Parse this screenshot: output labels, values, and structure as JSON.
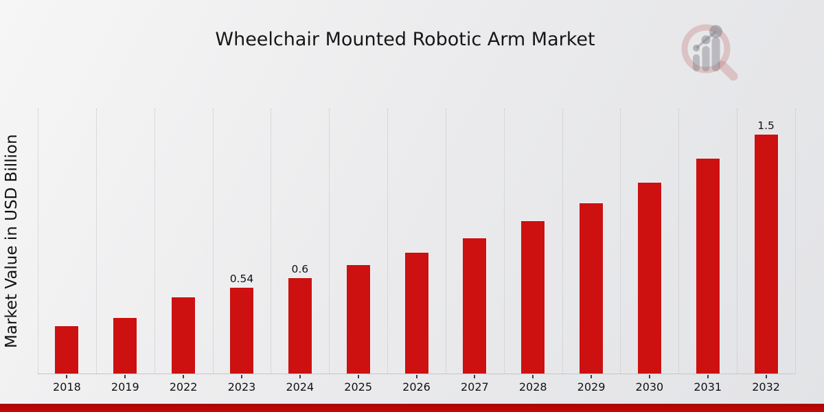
{
  "header": {
    "title": "Wheelchair Mounted Robotic Arm Market"
  },
  "chart_data": {
    "type": "bar",
    "title": "Wheelchair Mounted Robotic Arm Market",
    "xlabel": "",
    "ylabel": "Market Value in USD Billion",
    "categories": [
      "2018",
      "2019",
      "2022",
      "2023",
      "2024",
      "2025",
      "2026",
      "2027",
      "2028",
      "2029",
      "2030",
      "2031",
      "2032"
    ],
    "values": [
      0.3,
      0.35,
      0.48,
      0.54,
      0.6,
      0.68,
      0.76,
      0.85,
      0.96,
      1.07,
      1.2,
      1.35,
      1.5
    ],
    "data_labels": [
      "",
      "",
      "",
      "0.54",
      "0.6",
      "",
      "",
      "",
      "",
      "",
      "",
      "",
      "1.5"
    ],
    "bar_color": "#cd1010",
    "ylim": [
      0,
      1.67
    ],
    "grid": "vertical dotted gridlines at category boundaries",
    "legend_position": "none"
  },
  "footer": {
    "banner_color": "#b10505"
  },
  "logo": {
    "name": "magnifier-bar-chart-logo",
    "ring_color": "rgba(193,118,118,0.33)",
    "bars_color": "rgba(125,125,133,0.42)"
  }
}
